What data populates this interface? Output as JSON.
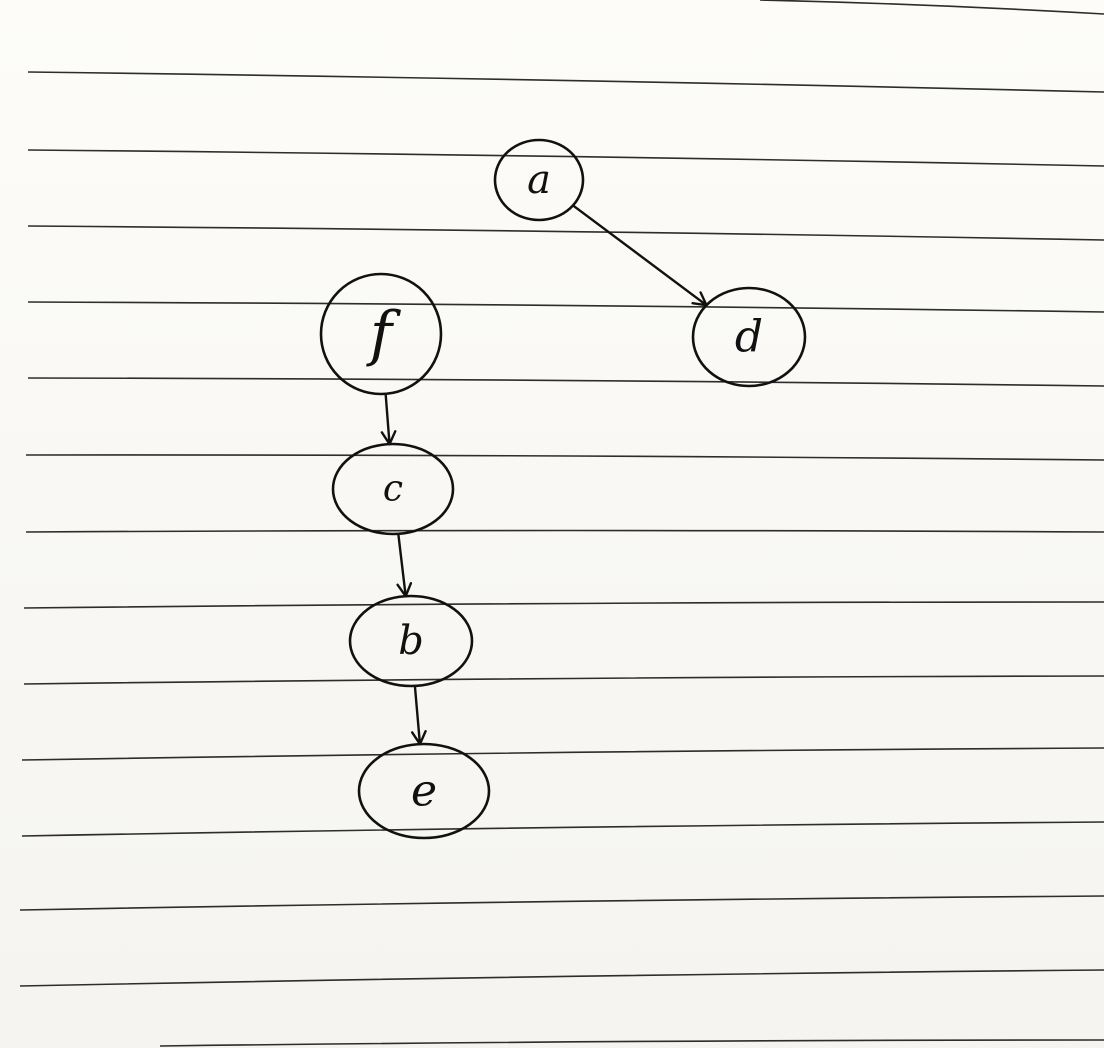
{
  "diagram": {
    "nodes": [
      {
        "id": "a",
        "label": "a"
      },
      {
        "id": "d",
        "label": "d"
      },
      {
        "id": "f",
        "label": "f"
      },
      {
        "id": "c",
        "label": "c"
      },
      {
        "id": "b",
        "label": "b"
      },
      {
        "id": "e",
        "label": "e"
      }
    ],
    "edges": [
      {
        "from": "a",
        "to": "d"
      },
      {
        "from": "f",
        "to": "c"
      },
      {
        "from": "c",
        "to": "b"
      },
      {
        "from": "b",
        "to": "e"
      }
    ]
  }
}
